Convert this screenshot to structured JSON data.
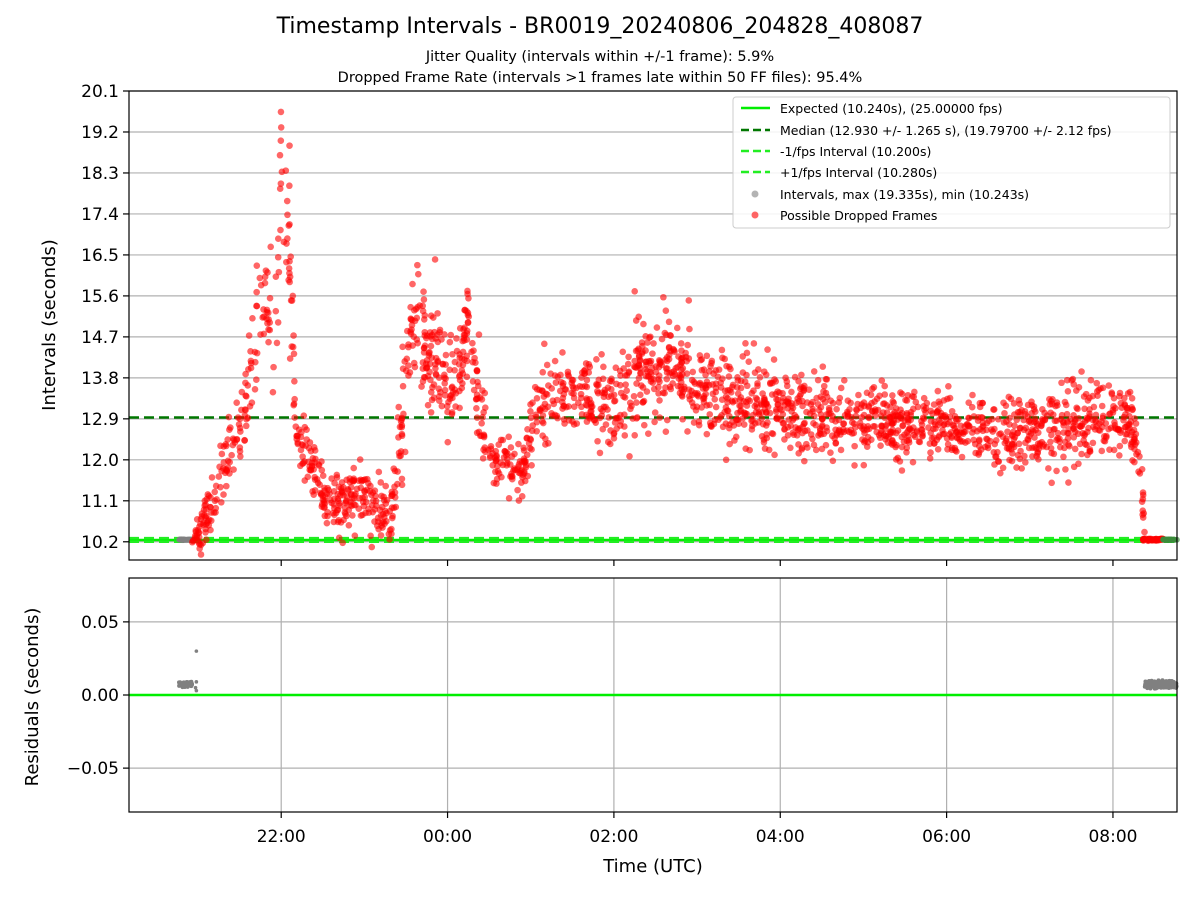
{
  "title": "Timestamp Intervals - BR0019_20240806_204828_408087",
  "subtitle_lines": [
    "Jitter Quality (intervals within +/-1 frame): 5.9%",
    "Dropped Frame Rate (intervals >1 frames late within 50 FF files): 95.4%"
  ],
  "colors": {
    "expected": "#00ee00",
    "median": "#007700",
    "interval_bound": "#22ee22",
    "intervals": "#808080",
    "dropped": "#ff0000",
    "grid": "#b0b0b0"
  },
  "chart_data": [
    {
      "type": "scatter",
      "panel": "top",
      "xlabel": "",
      "ylabel": "Intervals (seconds)",
      "x_ticks": [
        "22:00",
        "00:00",
        "02:00",
        "04:00",
        "06:00",
        "08:00"
      ],
      "x_tick_hours": [
        22,
        24,
        26,
        28,
        30,
        32
      ],
      "xlim_hours": [
        20.17,
        32.77
      ],
      "y_ticks": [
        "10.2",
        "11.1",
        "12.0",
        "12.9",
        "13.8",
        "14.7",
        "15.6",
        "16.5",
        "17.4",
        "18.3",
        "19.2",
        "20.1"
      ],
      "ylim": [
        9.8,
        20.1
      ],
      "grid": "y",
      "legend_position": "top-right",
      "reference_lines": [
        {
          "name": "Expected (10.240s), (25.00000 fps)",
          "y": 10.24,
          "style": "solid",
          "color_key": "expected"
        },
        {
          "name": "Median (12.930 +/- 1.265 s), (19.79700 +/- 2.12 fps)",
          "y": 12.93,
          "style": "dashed",
          "color_key": "median"
        },
        {
          "name": "-1/fps Interval (10.200s)",
          "y": 10.2,
          "style": "dashed",
          "color_key": "interval_bound"
        },
        {
          "name": "+1/fps Interval (10.280s)",
          "y": 10.28,
          "style": "dashed",
          "color_key": "interval_bound"
        }
      ],
      "series": [
        {
          "name": "Intervals, max (19.335s), min (10.243s)",
          "color_key": "intervals",
          "marker": "circle"
        },
        {
          "name": "Possible Dropped Frames",
          "color_key": "dropped",
          "marker": "circle"
        }
      ],
      "trend_profile": {
        "description": "approximate centerline (hours, seconds) and spread of the dropped-frame cloud",
        "x_hours": [
          20.95,
          21.05,
          21.15,
          21.3,
          21.45,
          21.55,
          21.7,
          21.85,
          21.95,
          22.0,
          22.1,
          22.18,
          22.3,
          22.5,
          22.7,
          22.9,
          23.1,
          23.3,
          23.4,
          23.55,
          23.65,
          23.8,
          24.0,
          24.1,
          24.25,
          24.4,
          24.5,
          24.6,
          24.75,
          24.9,
          25.05,
          25.2,
          25.5,
          25.8,
          26.0,
          26.2,
          26.4,
          26.6,
          26.8,
          27.0,
          27.3,
          27.6,
          28.0,
          28.5,
          29.0,
          29.5,
          30.0,
          30.5,
          31.0,
          31.5,
          31.8,
          32.0,
          32.2,
          32.3,
          32.35,
          32.4
        ],
        "y_center": [
          10.25,
          10.5,
          10.9,
          11.9,
          12.3,
          12.9,
          14.9,
          15.2,
          15.3,
          18.5,
          16.8,
          12.4,
          12.2,
          11.3,
          10.95,
          11.3,
          11.1,
          10.75,
          11.8,
          14.8,
          15.0,
          14.2,
          13.7,
          13.6,
          15.0,
          13.0,
          12.0,
          11.9,
          12.0,
          11.7,
          13.0,
          13.5,
          13.4,
          13.3,
          13.3,
          13.4,
          14.0,
          14.2,
          13.8,
          13.4,
          13.3,
          13.2,
          13.1,
          13.0,
          12.9,
          12.8,
          12.75,
          12.6,
          12.6,
          12.8,
          13.0,
          12.9,
          13.0,
          12.0,
          11.2,
          10.25
        ],
        "y_spread": [
          0.05,
          0.3,
          0.3,
          0.4,
          0.35,
          0.4,
          0.8,
          0.7,
          0.8,
          1.2,
          0.8,
          0.3,
          0.35,
          0.3,
          0.35,
          0.35,
          0.35,
          0.3,
          0.5,
          0.6,
          0.6,
          0.7,
          0.5,
          0.4,
          0.6,
          0.5,
          0.3,
          0.3,
          0.3,
          0.3,
          0.5,
          0.4,
          0.4,
          0.5,
          0.6,
          0.5,
          0.6,
          0.6,
          0.6,
          0.5,
          0.5,
          0.5,
          0.45,
          0.45,
          0.4,
          0.4,
          0.4,
          0.35,
          0.35,
          0.5,
          0.4,
          0.4,
          0.4,
          0.3,
          0.3,
          0.02
        ],
        "isolated_points": [
          [
            26.25,
            15.7
          ],
          [
            26.9,
            15.5
          ],
          [
            22.0,
            19.3
          ],
          [
            22.1,
            18.9
          ],
          [
            23.85,
            16.4
          ],
          [
            22.15,
            13.2
          ],
          [
            31.45,
            13.75
          ]
        ]
      }
    },
    {
      "type": "scatter",
      "panel": "bottom",
      "xlabel": "Time (UTC)",
      "ylabel": "Residuals (seconds)",
      "x_ticks": [
        "22:00",
        "00:00",
        "02:00",
        "04:00",
        "06:00",
        "08:00"
      ],
      "x_tick_hours": [
        22,
        24,
        26,
        28,
        30,
        32
      ],
      "xlim_hours": [
        20.17,
        32.77
      ],
      "y_ticks": [
        "−0.05",
        "0.00",
        "0.05"
      ],
      "y_tick_values": [
        -0.05,
        0.0,
        0.05
      ],
      "ylim": [
        -0.08,
        0.08
      ],
      "grid": "both",
      "reference_lines": [
        {
          "y": 0.0,
          "style": "solid",
          "color_key": "expected"
        }
      ],
      "series": [
        {
          "name": "",
          "color_key": "intervals",
          "clusters": [
            {
              "x_range_hours": [
                20.77,
                20.93
              ],
              "y_center": 0.0075,
              "y_spread": 0.0008
            },
            {
              "x_range_hours": [
                32.38,
                32.77
              ],
              "y_center": 0.0072,
              "y_spread": 0.0012
            }
          ],
          "extra_points": [
            [
              20.98,
              0.03
            ],
            [
              20.98,
              0.009
            ],
            [
              20.98,
              0.003
            ],
            [
              20.97,
              0.005
            ]
          ]
        }
      ]
    }
  ]
}
